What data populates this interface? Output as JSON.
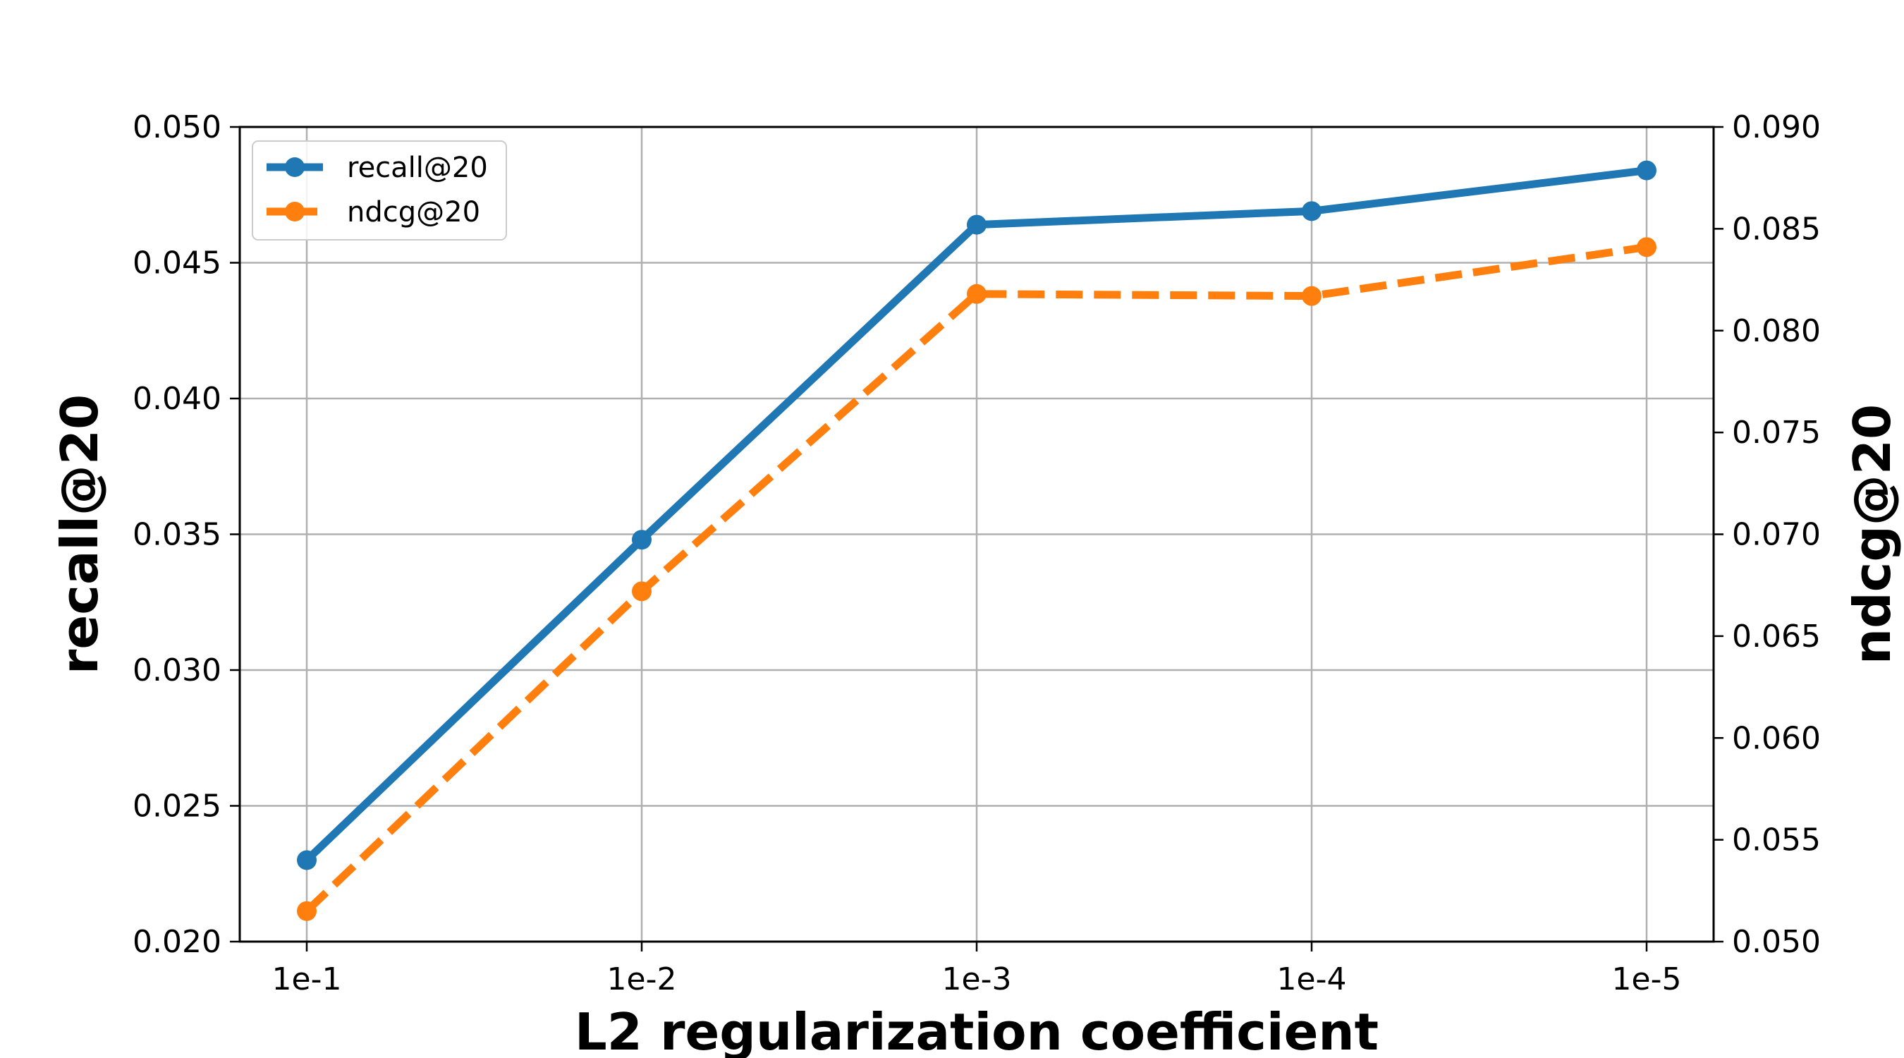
{
  "chart_data": {
    "type": "line",
    "categories": [
      "1e-1",
      "1e-2",
      "1e-3",
      "1e-4",
      "1e-5"
    ],
    "xlabel": "L2 regularization coefficient",
    "ylabel_left": "recall@20",
    "ylabel_right": "ndcg@20",
    "ylim_left": [
      0.02,
      0.05
    ],
    "ylim_right": [
      0.05,
      0.09
    ],
    "yticks_left": [
      "0.020",
      "0.025",
      "0.030",
      "0.035",
      "0.040",
      "0.045",
      "0.050"
    ],
    "yticks_right": [
      "0.050",
      "0.055",
      "0.060",
      "0.065",
      "0.070",
      "0.075",
      "0.080",
      "0.085",
      "0.090"
    ],
    "grid": true,
    "legend_position": "top-left",
    "series": [
      {
        "name": "recall@20",
        "axis": "left",
        "values": [
          0.023,
          0.0348,
          0.0464,
          0.0469,
          0.0484
        ],
        "color": "#1f77b4",
        "linestyle": "solid",
        "marker": "circle"
      },
      {
        "name": "ndcg@20",
        "axis": "right",
        "values": [
          0.0515,
          0.0672,
          0.0818,
          0.0817,
          0.0841
        ],
        "color": "#ff7f0e",
        "linestyle": "dashed",
        "marker": "circle"
      }
    ]
  }
}
